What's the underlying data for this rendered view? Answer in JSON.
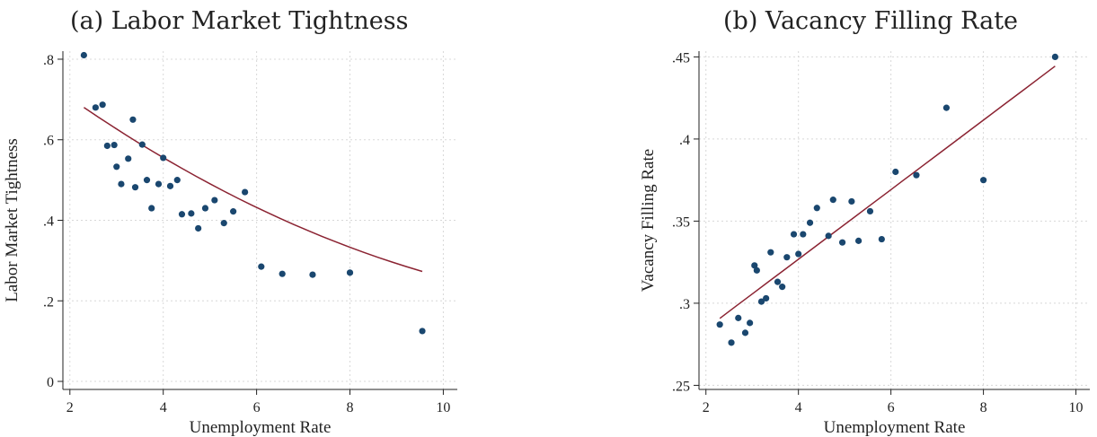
{
  "chart_data": [
    {
      "type": "scatter",
      "title": "(a) Labor Market Tightness",
      "xlabel": "Unemployment Rate",
      "ylabel": "Labor Market Tightness",
      "xlim": [
        1.85,
        10.3
      ],
      "ylim": [
        -0.02,
        0.82
      ],
      "xticks": [
        2,
        4,
        6,
        8,
        10
      ],
      "xtick_labels": [
        "2",
        "4",
        "6",
        "8",
        "10"
      ],
      "yticks": [
        0,
        0.2,
        0.4,
        0.6,
        0.8
      ],
      "ytick_labels": [
        "0",
        ".2",
        ".4",
        ".6",
        ".8"
      ],
      "grid": true,
      "colors": {
        "points": "#1a476f",
        "fit": "#8b2332"
      },
      "x": [
        2.3,
        2.55,
        2.7,
        2.8,
        2.95,
        3.0,
        3.1,
        3.25,
        3.35,
        3.4,
        3.55,
        3.65,
        3.75,
        3.9,
        4.0,
        4.15,
        4.3,
        4.4,
        4.6,
        4.75,
        4.9,
        5.1,
        5.3,
        5.5,
        5.75,
        6.1,
        6.55,
        7.2,
        8.0,
        9.55
      ],
      "y": [
        0.81,
        0.68,
        0.687,
        0.585,
        0.587,
        0.533,
        0.49,
        0.553,
        0.65,
        0.482,
        0.588,
        0.5,
        0.43,
        0.49,
        0.555,
        0.485,
        0.5,
        0.415,
        0.417,
        0.38,
        0.43,
        0.45,
        0.393,
        0.422,
        0.47,
        0.285,
        0.267,
        0.265,
        0.27,
        0.125
      ],
      "fit": {
        "type": "quadratic",
        "x": [
          2.3,
          2.6,
          2.9,
          3.2,
          3.5,
          3.8,
          4.1,
          4.4,
          4.7,
          5.0,
          5.3,
          5.6,
          5.9,
          6.2,
          6.5,
          6.8,
          7.1,
          7.4,
          7.7,
          8.0,
          8.3,
          8.6,
          8.9,
          9.2,
          9.55
        ],
        "y": [
          0.68,
          0.6568,
          0.6341,
          0.6119,
          0.5903,
          0.5693,
          0.5488,
          0.5289,
          0.5095,
          0.4907,
          0.4724,
          0.4547,
          0.4375,
          0.4209,
          0.4049,
          0.3894,
          0.3745,
          0.3601,
          0.3462,
          0.333,
          0.3202,
          0.308,
          0.2964,
          0.2853,
          0.273
        ]
      }
    },
    {
      "type": "scatter",
      "title": "(b) Vacancy Filling Rate",
      "xlabel": "Unemployment Rate",
      "ylabel": "Vacancy Filling Rate",
      "xlim": [
        1.85,
        10.3
      ],
      "ylim": [
        0.2475,
        0.4535
      ],
      "xticks": [
        2,
        4,
        6,
        8,
        10
      ],
      "xtick_labels": [
        "2",
        "4",
        "6",
        "8",
        "10"
      ],
      "yticks": [
        0.25,
        0.3,
        0.35,
        0.4,
        0.45
      ],
      "ytick_labels": [
        ".25",
        ".3",
        ".35",
        ".4",
        ".45"
      ],
      "grid": true,
      "colors": {
        "points": "#1a476f",
        "fit": "#8b2332"
      },
      "x": [
        2.3,
        2.55,
        2.7,
        2.85,
        2.95,
        3.05,
        3.1,
        3.2,
        3.3,
        3.4,
        3.55,
        3.65,
        3.75,
        3.9,
        4.0,
        4.1,
        4.25,
        4.4,
        4.65,
        4.75,
        4.95,
        5.15,
        5.3,
        5.55,
        5.8,
        6.1,
        6.55,
        7.2,
        8.0,
        9.55
      ],
      "y": [
        0.287,
        0.276,
        0.291,
        0.282,
        0.288,
        0.323,
        0.32,
        0.301,
        0.303,
        0.331,
        0.313,
        0.31,
        0.328,
        0.342,
        0.33,
        0.342,
        0.349,
        0.358,
        0.341,
        0.363,
        0.337,
        0.362,
        0.338,
        0.356,
        0.339,
        0.38,
        0.378,
        0.419,
        0.375,
        0.45
      ]
    }
  ]
}
